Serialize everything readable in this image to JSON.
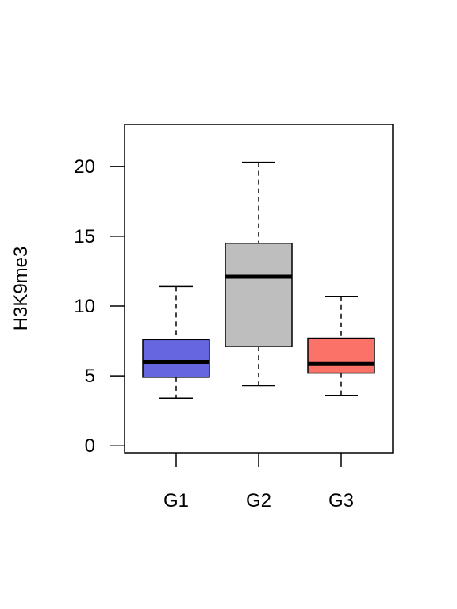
{
  "chart_data": {
    "type": "boxplot",
    "title": "",
    "xlabel": "",
    "ylabel": "H3K9me3",
    "ylim": [
      -0.5,
      23
    ],
    "y_ticks": [
      0,
      5,
      10,
      15,
      20
    ],
    "y_tick_labels": [
      "0",
      "5",
      "10",
      "15",
      "20"
    ],
    "grid": false,
    "legend": "none",
    "categories": [
      "G1",
      "G2",
      "G3"
    ],
    "boxes": [
      {
        "category": "G1",
        "whisker_low": 3.4,
        "q1": 4.9,
        "median": 6.0,
        "q3": 7.6,
        "whisker_high": 11.4,
        "color": "#6666e0"
      },
      {
        "category": "G2",
        "whisker_low": 4.3,
        "q1": 7.1,
        "median": 12.1,
        "q3": 14.5,
        "whisker_high": 20.3,
        "color": "#bebebe"
      },
      {
        "category": "G3",
        "whisker_low": 3.6,
        "q1": 5.2,
        "median": 5.9,
        "q3": 7.7,
        "whisker_high": 10.7,
        "color": "#fa7268"
      }
    ]
  }
}
